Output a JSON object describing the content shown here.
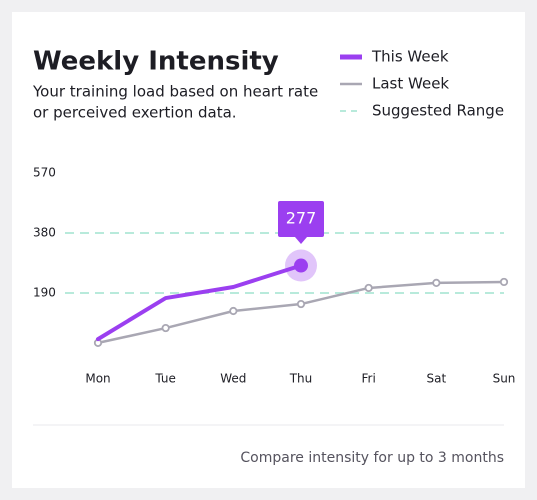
{
  "chart_data": {
    "type": "line",
    "title": "Weekly Intensity",
    "subtitle": [
      "Your training load based on heart rate",
      "or perceived exertion data."
    ],
    "categories": [
      "Mon",
      "Tue",
      "Wed",
      "Thu",
      "Fri",
      "Sat",
      "Sun"
    ],
    "series": [
      {
        "name": "This Week",
        "color": "#9b3ff0",
        "values": [
          44,
          174,
          209,
          277,
          null,
          null,
          null
        ]
      },
      {
        "name": "Last Week",
        "color": "#a9a7b3",
        "values": [
          32,
          79,
          133,
          155,
          206,
          222,
          225
        ]
      }
    ],
    "range": [
      190,
      380
    ],
    "range_label": "Suggested Range",
    "range_color": "#b8eadb",
    "ylim": [
      0,
      570
    ],
    "yticks": [
      190,
      380,
      570
    ],
    "highlight_index": 3,
    "footer": "Compare intensity for up to 3 months"
  }
}
